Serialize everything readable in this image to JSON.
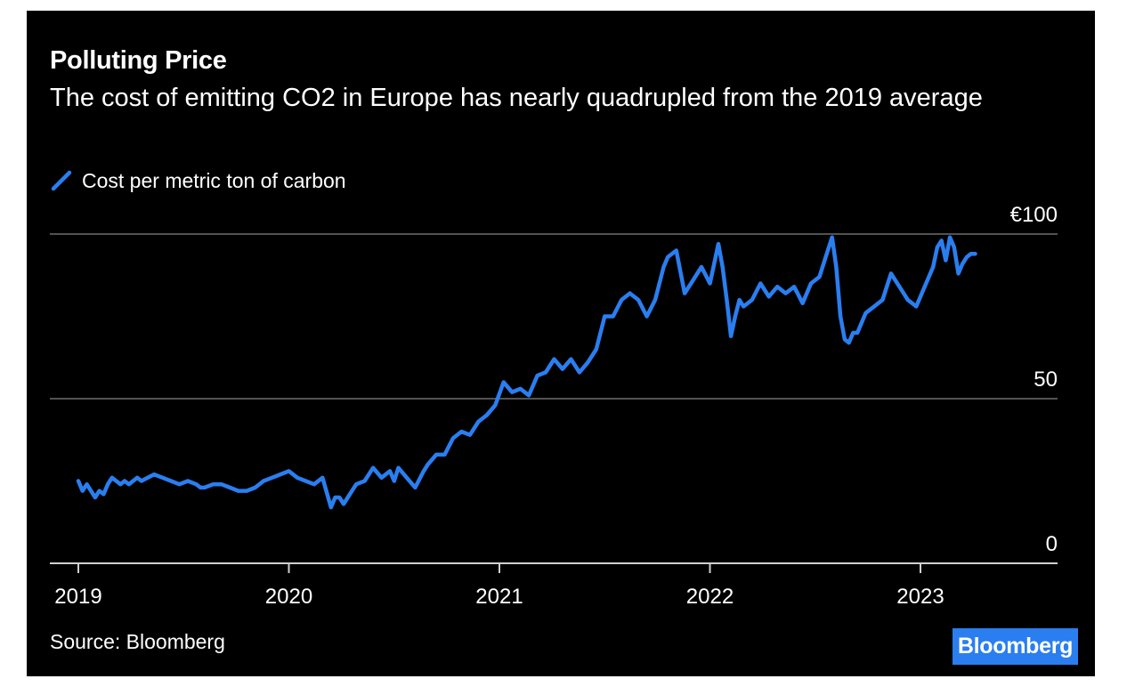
{
  "header": {
    "title": "Polluting Price",
    "subtitle": "The cost of emitting CO2 in Europe has nearly quadrupled from the 2019 average"
  },
  "legend": {
    "label": "Cost per metric ton of carbon",
    "icon": "line-swatch-icon"
  },
  "footer": {
    "source": "Source: Bloomberg",
    "brand": "Bloomberg"
  },
  "colors": {
    "background": "#000000",
    "series": "#2a7ef0",
    "gridline": "#6e6e6e",
    "text": "#ffffff",
    "brand_bg": "#2a7ef0"
  },
  "chart_data": {
    "type": "line",
    "title": "Polluting Price",
    "subtitle": "The cost of emitting CO2 in Europe has nearly quadrupled from the 2019 average",
    "xlabel": "",
    "ylabel": "",
    "ylim": [
      0,
      100
    ],
    "xlim": [
      2019.0,
      2023.65
    ],
    "y_ticks": [
      {
        "value": 100,
        "label": "€100"
      },
      {
        "value": 50,
        "label": "50"
      },
      {
        "value": 0,
        "label": "0"
      }
    ],
    "x_ticks": [
      {
        "value": 2019,
        "label": "2019"
      },
      {
        "value": 2020,
        "label": "2020"
      },
      {
        "value": 2021,
        "label": "2021"
      },
      {
        "value": 2022,
        "label": "2022"
      },
      {
        "value": 2023,
        "label": "2023"
      }
    ],
    "grid": true,
    "legend_position": "top-left",
    "series": [
      {
        "name": "Cost per metric ton of carbon",
        "x": [
          2019.0,
          2019.02,
          2019.04,
          2019.06,
          2019.08,
          2019.1,
          2019.12,
          2019.14,
          2019.16,
          2019.18,
          2019.2,
          2019.22,
          2019.24,
          2019.26,
          2019.28,
          2019.3,
          2019.33,
          2019.36,
          2019.4,
          2019.44,
          2019.48,
          2019.52,
          2019.56,
          2019.58,
          2019.6,
          2019.64,
          2019.68,
          2019.72,
          2019.76,
          2019.8,
          2019.84,
          2019.88,
          2019.92,
          2019.96,
          2020.0,
          2020.04,
          2020.08,
          2020.12,
          2020.16,
          2020.2,
          2020.22,
          2020.24,
          2020.26,
          2020.28,
          2020.3,
          2020.32,
          2020.36,
          2020.4,
          2020.44,
          2020.48,
          2020.5,
          2020.52,
          2020.56,
          2020.6,
          2020.64,
          2020.66,
          2020.7,
          2020.74,
          2020.78,
          2020.82,
          2020.86,
          2020.9,
          2020.94,
          2020.98,
          2021.02,
          2021.06,
          2021.1,
          2021.14,
          2021.18,
          2021.22,
          2021.26,
          2021.3,
          2021.34,
          2021.38,
          2021.42,
          2021.46,
          2021.5,
          2021.54,
          2021.58,
          2021.62,
          2021.66,
          2021.7,
          2021.74,
          2021.78,
          2021.8,
          2021.84,
          2021.88,
          2021.92,
          2021.96,
          2022.0,
          2022.04,
          2022.06,
          2022.08,
          2022.1,
          2022.12,
          2022.14,
          2022.16,
          2022.2,
          2022.24,
          2022.28,
          2022.32,
          2022.36,
          2022.4,
          2022.44,
          2022.48,
          2022.52,
          2022.56,
          2022.58,
          2022.6,
          2022.62,
          2022.64,
          2022.66,
          2022.68,
          2022.7,
          2022.74,
          2022.78,
          2022.82,
          2022.86,
          2022.9,
          2022.94,
          2022.98,
          2023.02,
          2023.06,
          2023.08,
          2023.1,
          2023.12,
          2023.14,
          2023.16,
          2023.18,
          2023.2,
          2023.22,
          2023.24,
          2023.26
        ],
        "values": [
          25,
          22,
          24,
          22,
          20,
          22,
          21,
          24,
          26,
          25,
          24,
          25,
          24,
          25,
          26,
          25,
          26,
          27,
          26,
          25,
          24,
          25,
          24,
          23,
          23,
          24,
          24,
          23,
          22,
          22,
          23,
          25,
          26,
          27,
          28,
          26,
          25,
          24,
          26,
          17,
          20,
          20,
          18,
          20,
          22,
          24,
          25,
          29,
          26,
          28,
          25,
          29,
          26,
          23,
          28,
          30,
          33,
          33,
          38,
          40,
          39,
          43,
          45,
          48,
          55,
          52,
          53,
          51,
          57,
          58,
          62,
          59,
          62,
          58,
          61,
          65,
          75,
          75,
          80,
          82,
          80,
          75,
          80,
          90,
          93,
          95,
          82,
          86,
          90,
          85,
          97,
          90,
          80,
          69,
          75,
          80,
          78,
          80,
          85,
          81,
          84,
          82,
          84,
          79,
          85,
          87,
          95,
          99,
          90,
          75,
          68,
          67,
          70,
          70,
          76,
          78,
          80,
          88,
          84,
          80,
          78,
          84,
          90,
          96,
          98,
          92,
          99,
          96,
          88,
          91,
          93,
          94,
          94
        ]
      }
    ]
  }
}
